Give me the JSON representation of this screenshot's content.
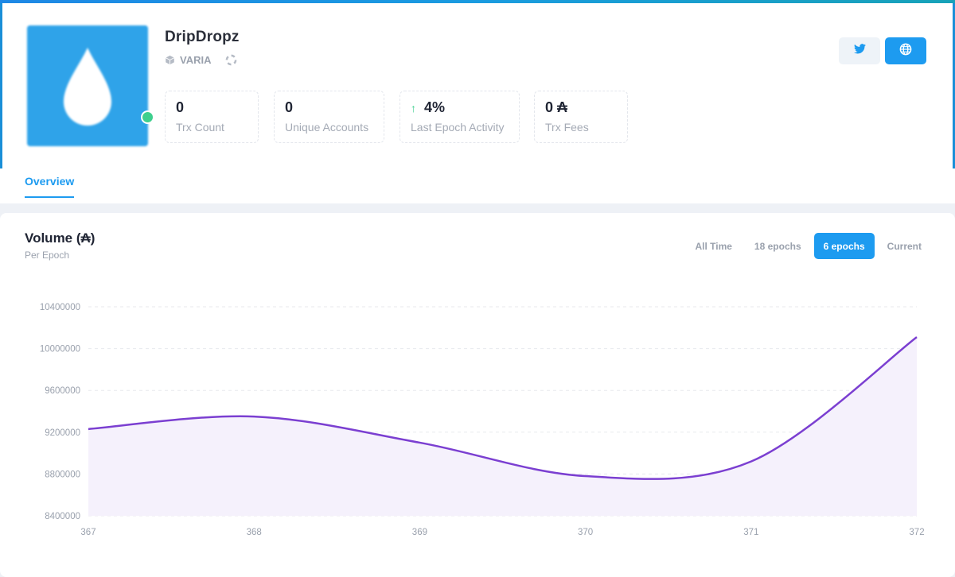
{
  "pool": {
    "name": "DripDropz",
    "ticker": "VARIA",
    "status_color": "#3ecf8e"
  },
  "stats": [
    {
      "value": "0",
      "label": "Trx Count"
    },
    {
      "value": "0",
      "label": "Unique Accounts"
    },
    {
      "value": "4%",
      "label": "Last Epoch Activity",
      "trend": "up"
    },
    {
      "value": "0 ₳",
      "label": "Trx Fees"
    }
  ],
  "social": {
    "twitter_icon": "twitter-icon",
    "website_icon": "globe-icon",
    "accent": "#1d9bf0"
  },
  "tabs": [
    {
      "label": "Overview",
      "active": true
    }
  ],
  "chart_card": {
    "title": "Volume (₳)",
    "subtitle": "Per Epoch",
    "ranges": [
      "All Time",
      "18 epochs",
      "6 epochs",
      "Current"
    ],
    "active_range": "6 epochs"
  },
  "chart_data": {
    "type": "area",
    "title": "Volume (₳)",
    "subtitle": "Per Epoch",
    "x": [
      367,
      368,
      369,
      370,
      371,
      372
    ],
    "series": [
      {
        "values": [
          9230000,
          9350000,
          9100000,
          8780000,
          8920000,
          10110000
        ],
        "color": "#7b3fd1"
      }
    ],
    "yticks": [
      8400000,
      8800000,
      9200000,
      9600000,
      10000000,
      10400000
    ],
    "ylim": [
      8400000,
      10400000
    ],
    "grid": true
  }
}
